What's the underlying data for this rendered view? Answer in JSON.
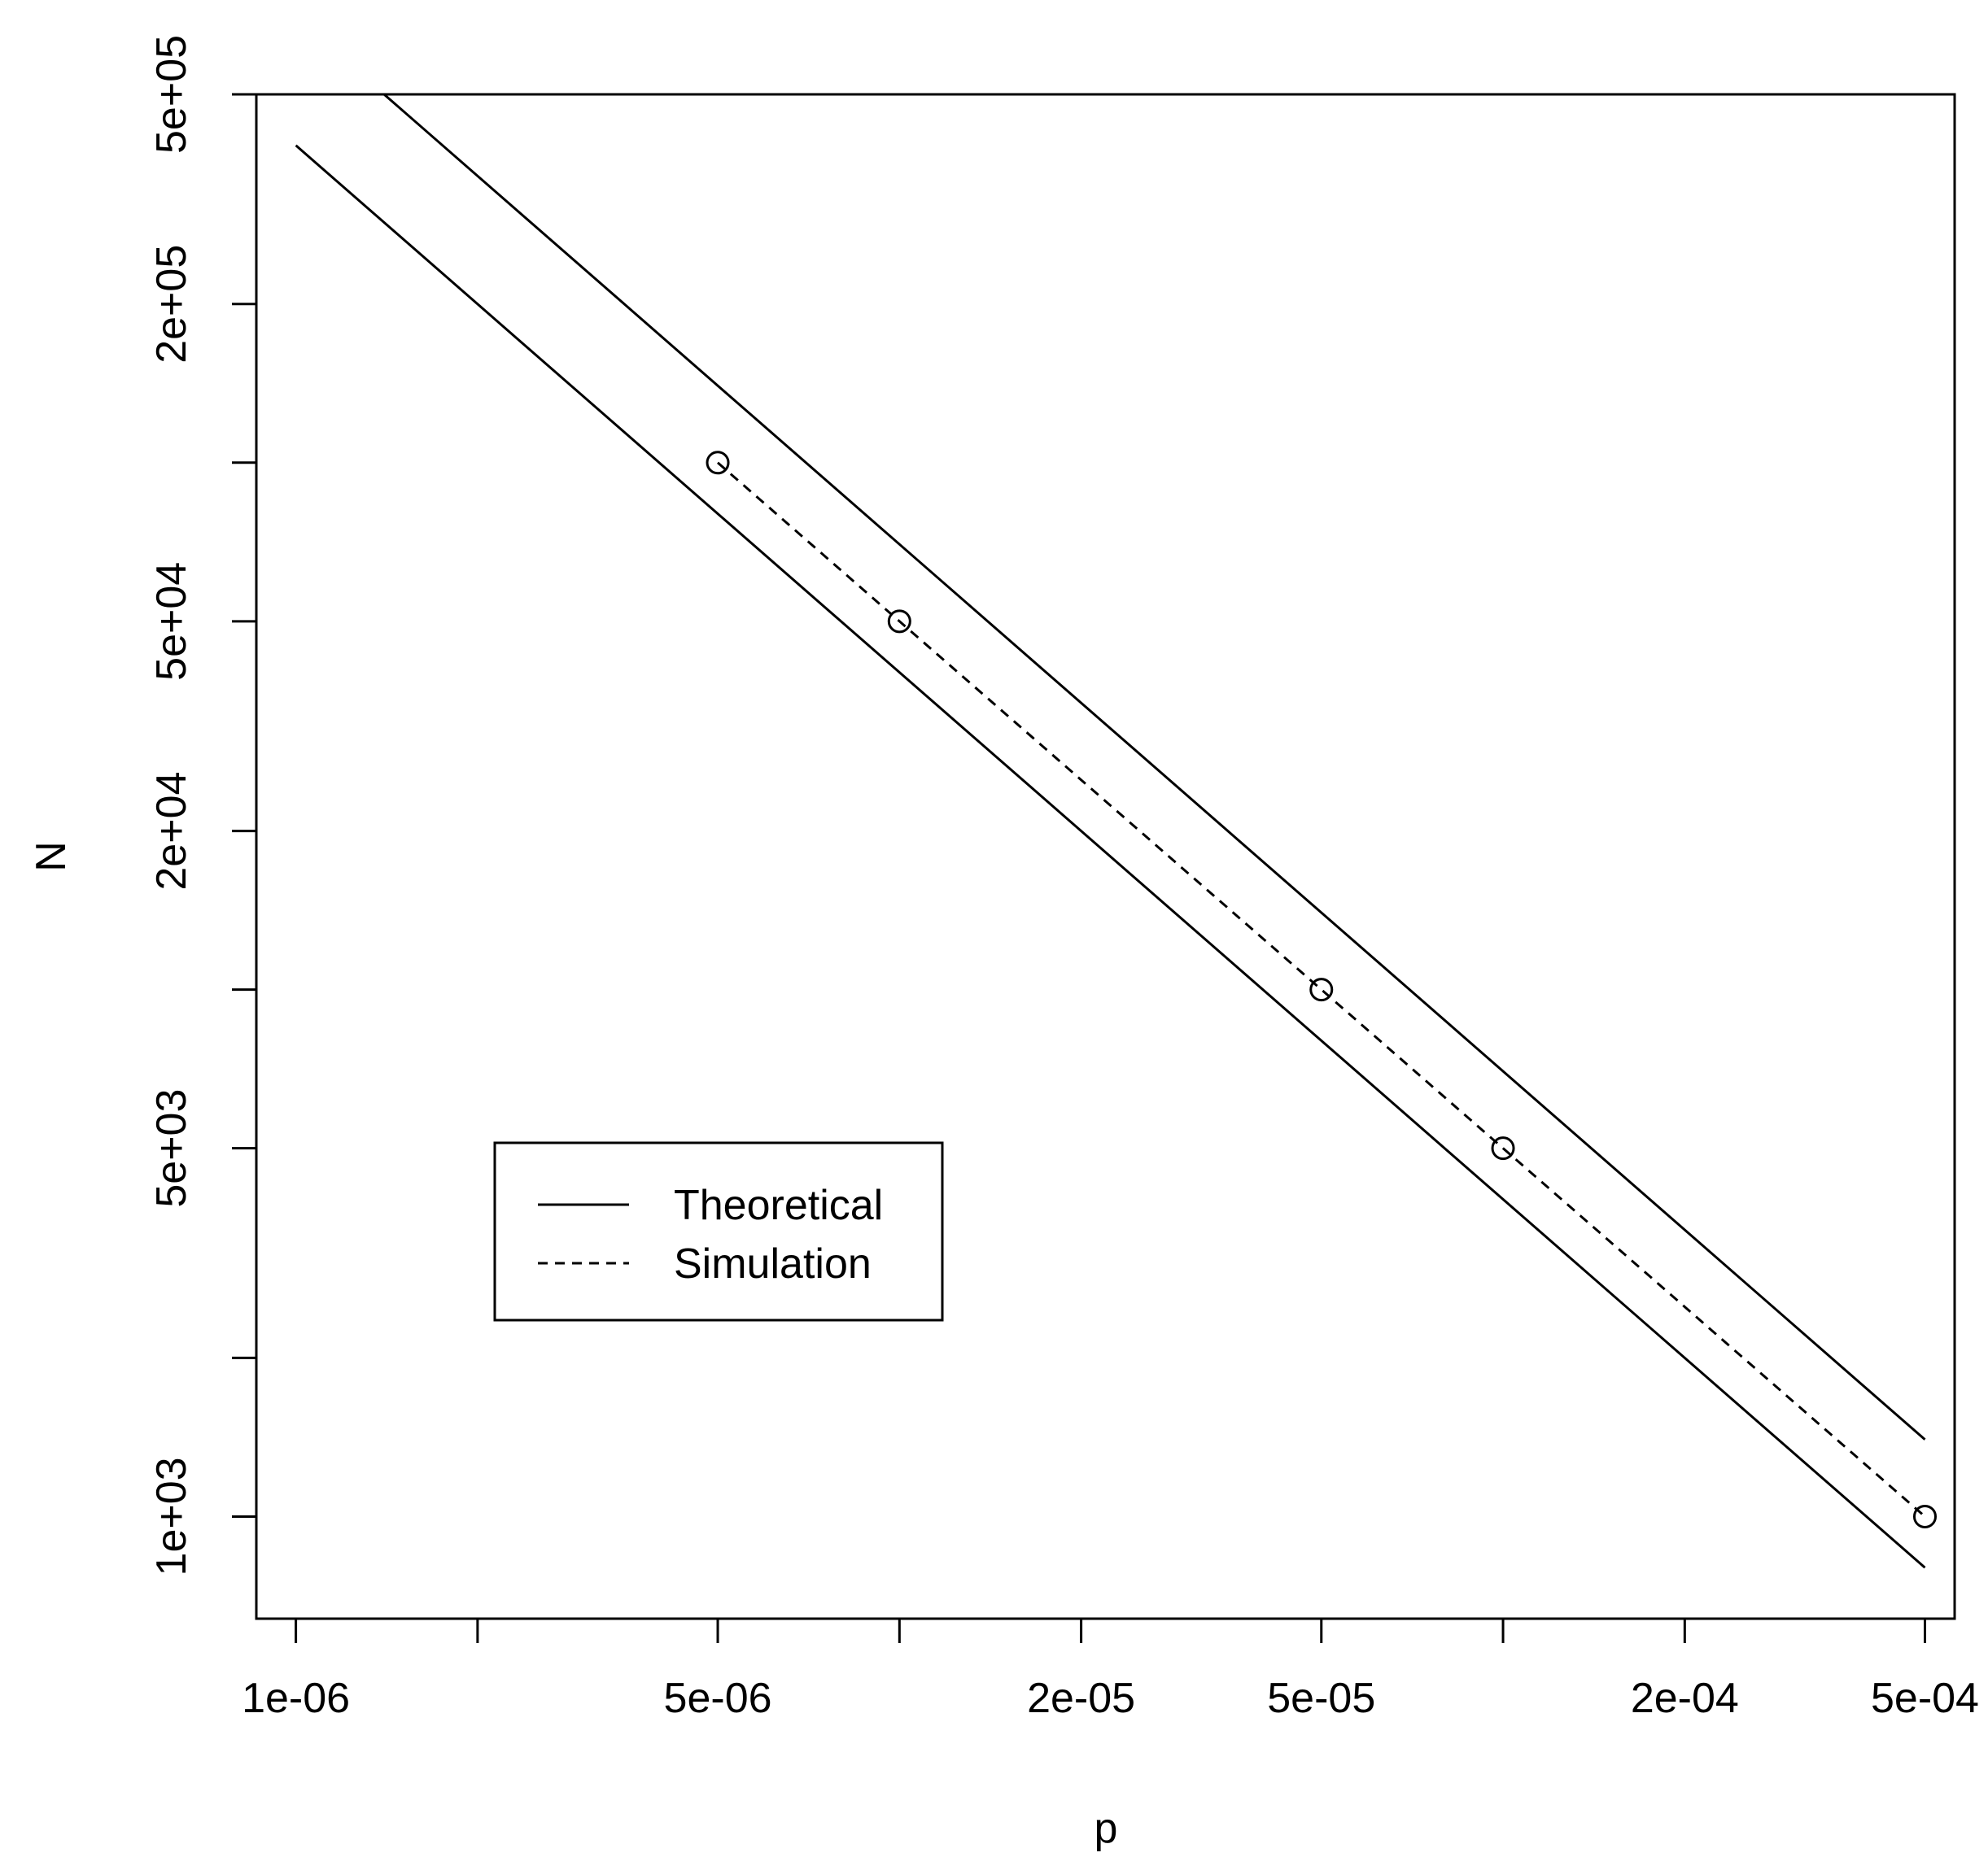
{
  "chart_data": {
    "type": "line",
    "title": "",
    "xlabel": "p",
    "ylabel": "N",
    "x_scale": "log",
    "y_scale": "log",
    "xlim": [
      8.6e-07,
      0.00056
    ],
    "ylim": [
      640,
      500000
    ],
    "x_ticks": [
      1e-06,
      2e-06,
      5e-06,
      1e-05,
      2e-05,
      5e-05,
      0.0001,
      0.0002,
      0.0005
    ],
    "x_tick_labels": [
      "1e-06",
      "",
      "5e-06",
      "",
      "2e-05",
      "5e-05",
      "",
      "2e-04",
      "5e-04"
    ],
    "y_ticks": [
      1000,
      2000,
      5000,
      10000,
      20000,
      50000,
      100000,
      200000,
      500000
    ],
    "y_tick_labels": [
      "1e+03",
      "",
      "5e+03",
      "",
      "2e+04",
      "5e+04",
      "",
      "2e+05",
      "5e+05"
    ],
    "grid": false,
    "legend_position": "lower-left",
    "series": [
      {
        "name": "Theoretical",
        "style": "solid",
        "points": [
          [
            1e-06,
            400000
          ],
          [
            0.0005,
            800
          ]
        ]
      },
      {
        "style": "solid",
        "points": [
          [
            1.4e-06,
            500000
          ],
          [
            0.0005,
            1400
          ]
        ]
      },
      {
        "name": "Simulation",
        "style": "dashed",
        "markers": "open-circle",
        "points": [
          [
            5e-06,
            100000
          ],
          [
            1e-05,
            50000
          ],
          [
            5e-05,
            10000
          ],
          [
            0.0001,
            5000
          ],
          [
            0.0005,
            1000
          ]
        ]
      }
    ],
    "legend": [
      {
        "label": "Theoretical",
        "style": "solid"
      },
      {
        "label": "Simulation",
        "style": "dashed"
      }
    ]
  }
}
